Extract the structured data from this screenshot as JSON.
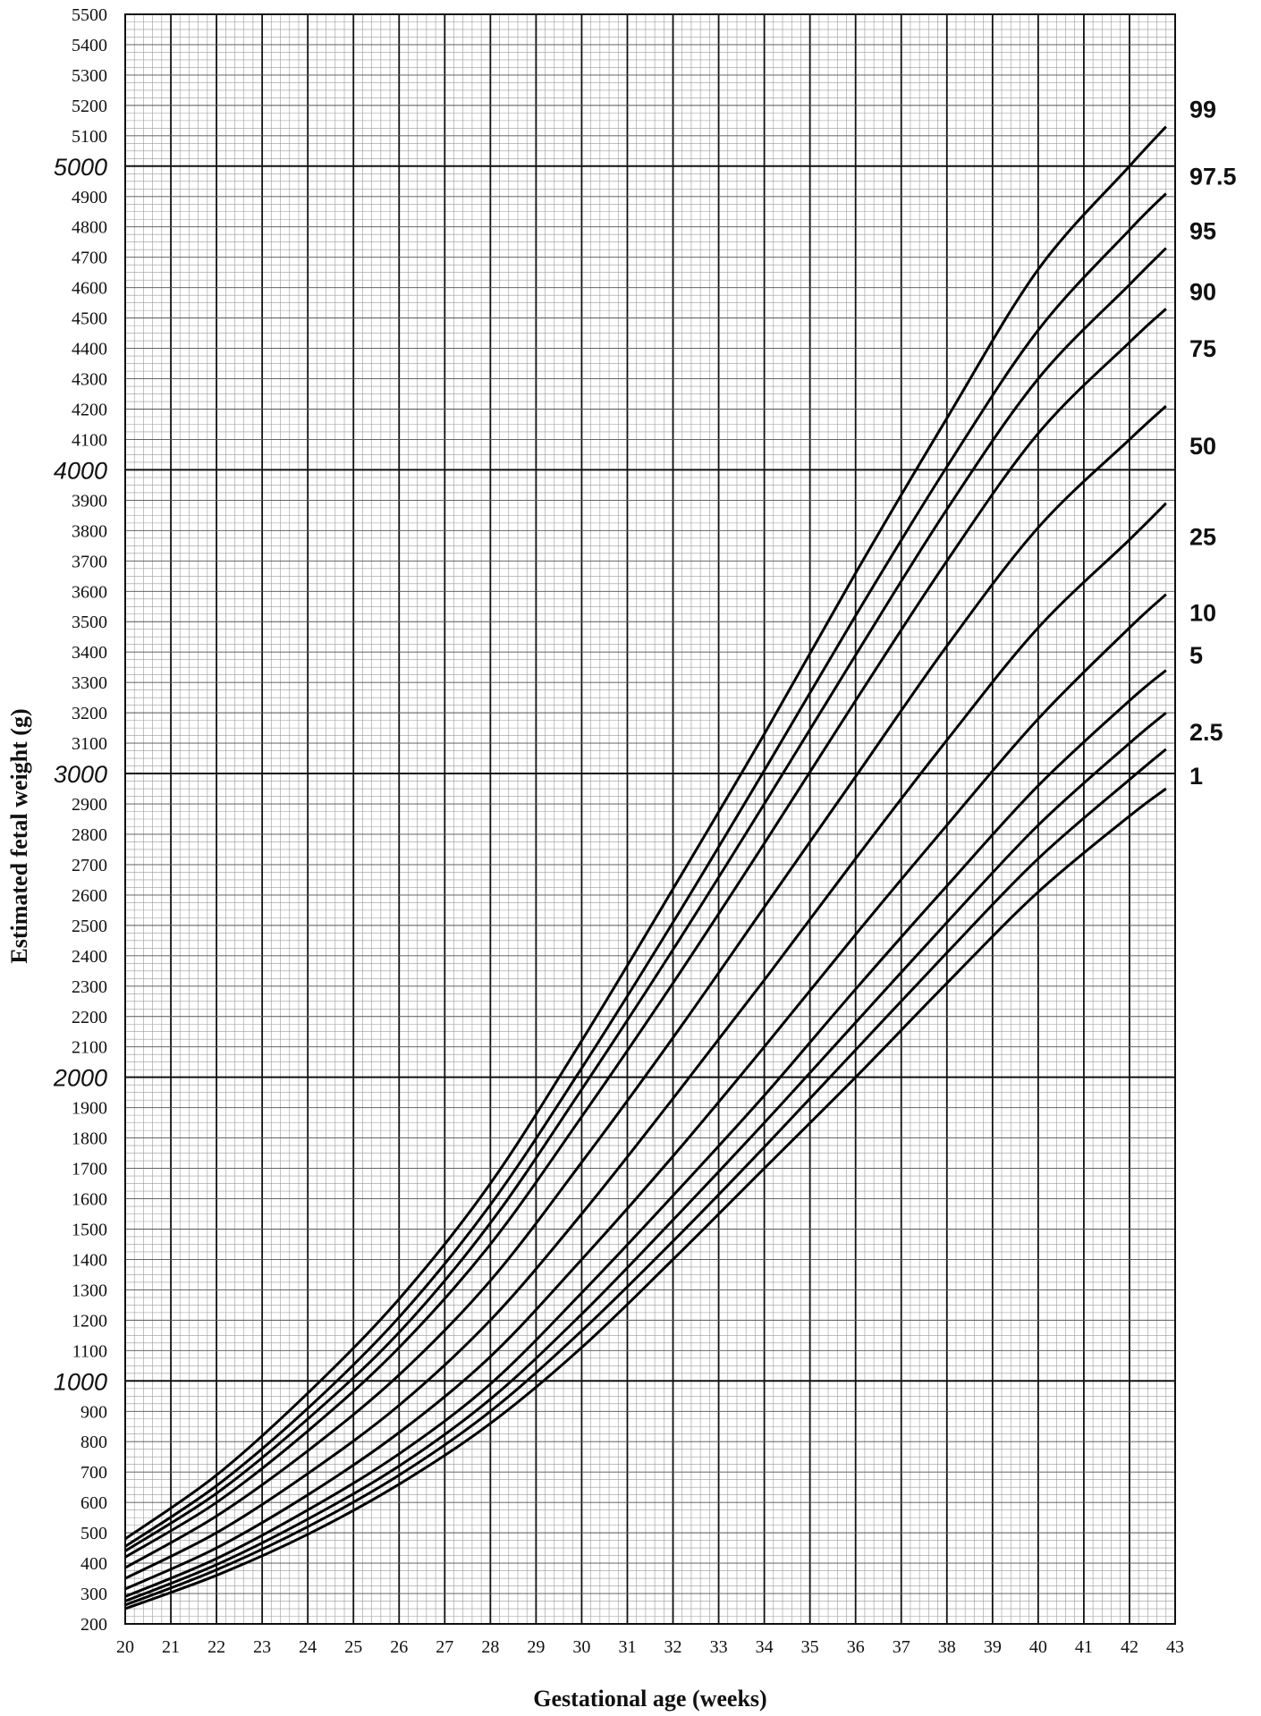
{
  "chart_data": {
    "type": "line",
    "title": "",
    "xlabel": "Gestational age (weeks)",
    "ylabel": "Estimated fetal weight (g)",
    "xlim": [
      20,
      43
    ],
    "ylim": [
      200,
      5500
    ],
    "x_ticks": [
      20,
      21,
      22,
      23,
      24,
      25,
      26,
      27,
      28,
      29,
      30,
      31,
      32,
      33,
      34,
      35,
      36,
      37,
      38,
      39,
      40,
      41,
      42,
      43
    ],
    "y_ticks": [
      200,
      300,
      400,
      500,
      600,
      700,
      800,
      900,
      1000,
      1100,
      1200,
      1300,
      1400,
      1500,
      1600,
      1700,
      1800,
      1900,
      2000,
      2100,
      2200,
      2300,
      2400,
      2500,
      2600,
      2700,
      2800,
      2900,
      3000,
      3100,
      3200,
      3300,
      3400,
      3500,
      3600,
      3700,
      3800,
      3900,
      4000,
      4100,
      4200,
      4300,
      4400,
      4500,
      4600,
      4700,
      4800,
      4900,
      5000,
      5100,
      5200,
      5300,
      5400,
      5500
    ],
    "y_major_ticks": [
      1000,
      2000,
      3000,
      4000,
      5000
    ],
    "grid": true,
    "legend": "series labels at right end of lines",
    "x": [
      20,
      22,
      24,
      26,
      28,
      30,
      32,
      34,
      36,
      38,
      40,
      42,
      42.8
    ],
    "series": [
      {
        "name": "99",
        "values": [
          480,
          690,
          960,
          1270,
          1650,
          2120,
          2620,
          3130,
          3660,
          4170,
          4660,
          5000,
          5130
        ]
      },
      {
        "name": "97.5",
        "values": [
          455,
          655,
          910,
          1210,
          1580,
          2030,
          2510,
          3010,
          3520,
          4010,
          4460,
          4790,
          4910
        ]
      },
      {
        "name": "95",
        "values": [
          440,
          630,
          875,
          1160,
          1520,
          1960,
          2420,
          2900,
          3390,
          3870,
          4300,
          4610,
          4730
        ]
      },
      {
        "name": "90",
        "values": [
          420,
          600,
          835,
          1110,
          1450,
          1870,
          2310,
          2770,
          3240,
          3700,
          4120,
          4420,
          4530
        ]
      },
      {
        "name": "75",
        "values": [
          385,
          555,
          770,
          1020,
          1330,
          1720,
          2130,
          2560,
          2990,
          3420,
          3810,
          4100,
          4210
        ]
      },
      {
        "name": "50",
        "values": [
          350,
          500,
          695,
          920,
          1200,
          1550,
          1930,
          2320,
          2720,
          3110,
          3480,
          3770,
          3890
        ]
      },
      {
        "name": "25",
        "values": [
          315,
          450,
          625,
          830,
          1080,
          1400,
          1740,
          2100,
          2470,
          2830,
          3180,
          3480,
          3590
        ]
      },
      {
        "name": "10",
        "values": [
          290,
          415,
          575,
          760,
          990,
          1290,
          1610,
          1940,
          2290,
          2630,
          2960,
          3240,
          3340
        ]
      },
      {
        "name": "5",
        "values": [
          275,
          395,
          545,
          720,
          940,
          1220,
          1530,
          1850,
          2180,
          2510,
          2830,
          3100,
          3200
        ]
      },
      {
        "name": "2.5",
        "values": [
          262,
          378,
          520,
          690,
          900,
          1165,
          1460,
          1770,
          2090,
          2410,
          2720,
          2980,
          3080
        ]
      },
      {
        "name": "1",
        "values": [
          250,
          360,
          495,
          660,
          860,
          1110,
          1400,
          1700,
          2000,
          2310,
          2610,
          2860,
          2950
        ]
      }
    ]
  }
}
